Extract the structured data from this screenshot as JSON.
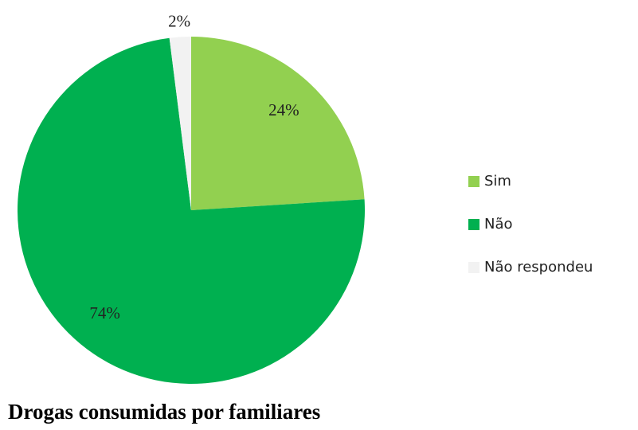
{
  "chart_data": {
    "type": "pie",
    "title": "Drogas consumidas por familiares",
    "categories": [
      "Sim",
      "Não",
      "Não respondeu"
    ],
    "values": [
      24,
      74,
      2
    ],
    "value_labels": [
      "24%",
      "74%",
      "2%"
    ],
    "colors": [
      "#92d050",
      "#00b050",
      "#f2f2f2"
    ],
    "legend": "right"
  }
}
